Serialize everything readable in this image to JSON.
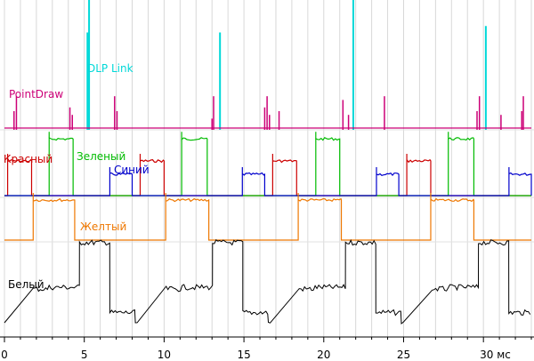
{
  "chart_data": {
    "type": "line",
    "title": "",
    "xlabel": "мс",
    "ylabel": "",
    "xlim": [
      0,
      33
    ],
    "x_ticks": [
      0,
      5,
      10,
      15,
      20,
      25,
      30
    ],
    "x_tick_labels": [
      "0",
      "5",
      "10",
      "15",
      "20",
      "25",
      "30 мс"
    ],
    "grid": true,
    "legend": "inline labels",
    "period": 8.33,
    "series": [
      {
        "name": "PointDraw",
        "label": "PointDraw",
        "color": "#cc0077",
        "description": "short impulses on a flat baseline",
        "spikes": [
          0.6,
          0.75,
          4.1,
          4.25,
          6.9,
          7.05,
          13.0,
          13.1,
          16.3,
          16.45,
          16.6,
          17.2,
          21.2,
          21.55,
          23.8,
          29.6,
          29.75,
          31.1,
          32.4,
          32.5
        ],
        "spike_heights": [
          0.5,
          0.9,
          0.6,
          0.4,
          0.9,
          0.5,
          0.3,
          0.9,
          0.6,
          0.9,
          0.4,
          0.5,
          0.8,
          0.4,
          0.9,
          0.5,
          0.9,
          0.4,
          0.5,
          0.9
        ]
      },
      {
        "name": "DLP Link",
        "label": "DLP Link",
        "color": "#00d8d8",
        "description": "narrow sync pulses",
        "spikes": [
          5.2,
          5.3,
          13.5,
          21.85,
          30.15
        ],
        "spike_heights": [
          0.75,
          1.0,
          0.75,
          1.0,
          0.8
        ]
      },
      {
        "name": "Красный",
        "label": "Красный",
        "color": "#cc0000",
        "segments_ms": [
          [
            0.2,
            1.7
          ],
          [
            8.5,
            10.0
          ],
          [
            16.8,
            18.3
          ],
          [
            25.2,
            26.7
          ]
        ],
        "level": 0.5
      },
      {
        "name": "Зеленый",
        "label": "Зеленый",
        "color": "#00bb00",
        "segments_ms": [
          [
            2.8,
            4.3
          ],
          [
            11.1,
            12.7
          ],
          [
            19.5,
            21.0
          ],
          [
            27.8,
            29.4
          ]
        ],
        "level": 0.75
      },
      {
        "name": "Синий",
        "label": "Синий",
        "color": "#0000cc",
        "segments_ms": [
          [
            6.6,
            8.0
          ],
          [
            14.9,
            16.3
          ],
          [
            23.3,
            24.7
          ],
          [
            31.6,
            33.0
          ]
        ],
        "level": 0.4
      },
      {
        "name": "Желтый",
        "label": "Желтый",
        "color": "#ee7700",
        "segments_ms": [
          [
            1.8,
            4.4
          ],
          [
            10.1,
            12.8
          ],
          [
            18.4,
            21.1
          ],
          [
            26.7,
            29.4
          ]
        ],
        "level": 0.75
      },
      {
        "name": "Белый",
        "label": "Белый",
        "color": "#000000",
        "segments_ms": [
          [
            1.8,
            2.8,
            0.4
          ],
          [
            2.8,
            4.7,
            0.42
          ],
          [
            4.7,
            6.6,
            0.95
          ],
          [
            6.6,
            8.2,
            0.12
          ]
        ],
        "description": "stepped luminance per color frame"
      }
    ]
  }
}
